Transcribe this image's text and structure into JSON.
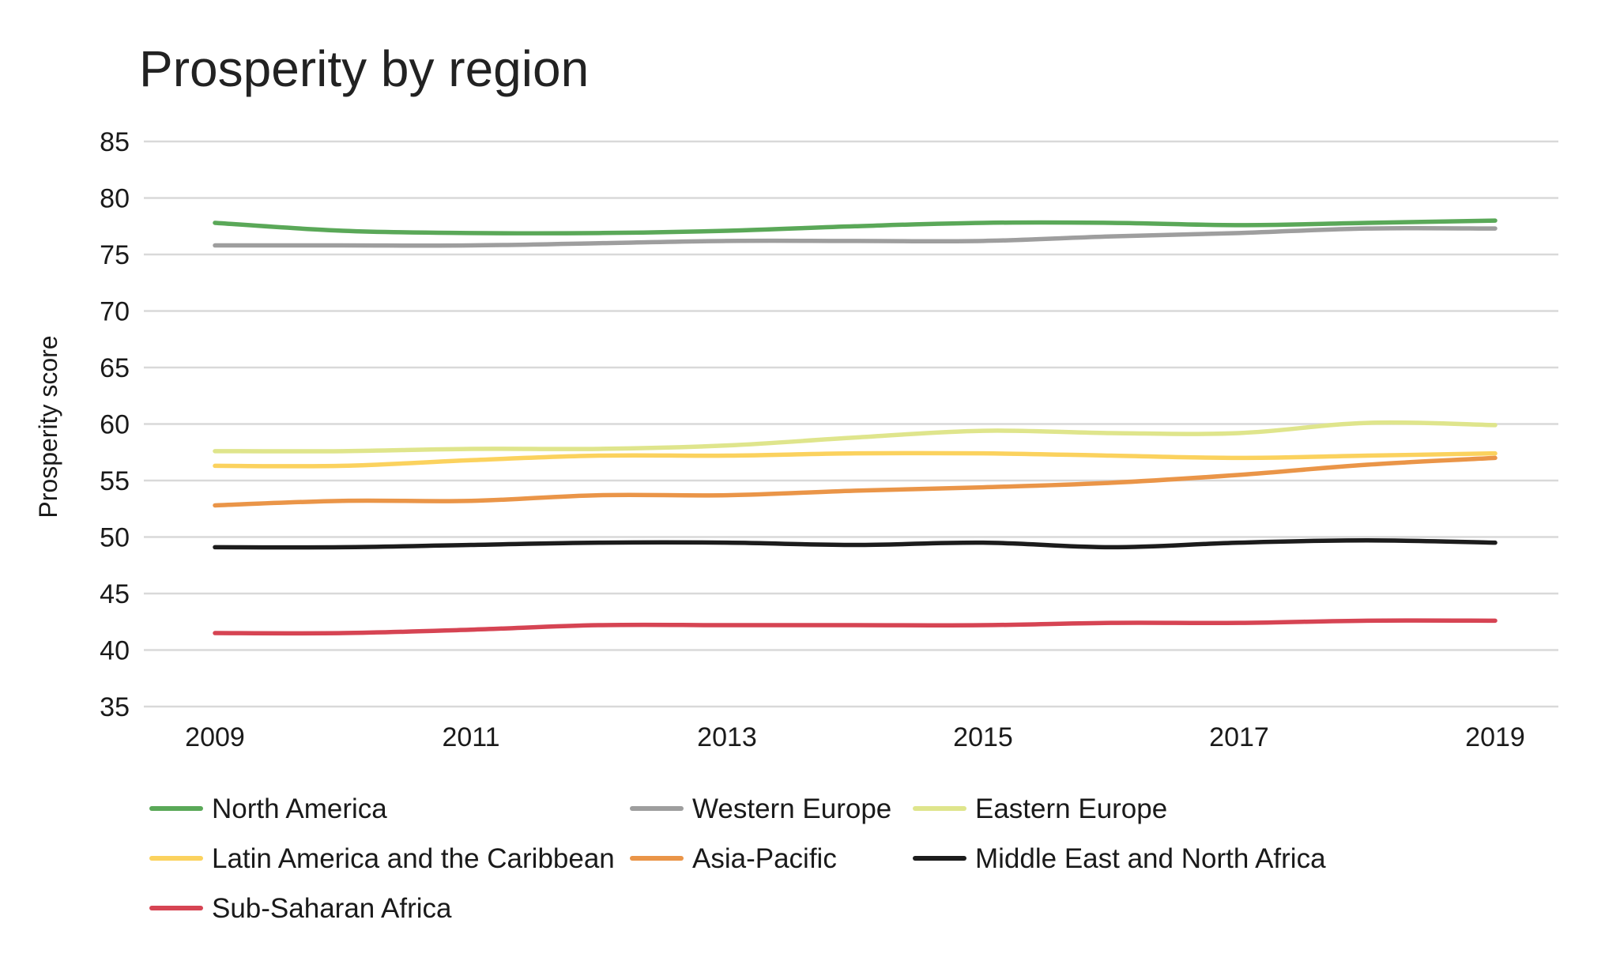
{
  "chart_data": {
    "type": "line",
    "title": "Prosperity by region",
    "xlabel": "",
    "ylabel": "Prosperity score",
    "ylim": [
      35,
      85
    ],
    "yticks": [
      35,
      40,
      45,
      50,
      55,
      60,
      65,
      70,
      75,
      80,
      85
    ],
    "xlim": [
      2009,
      2019
    ],
    "xticks": [
      2009,
      2011,
      2013,
      2015,
      2017,
      2019
    ],
    "x": [
      2009,
      2010,
      2011,
      2012,
      2013,
      2014,
      2015,
      2016,
      2017,
      2018,
      2019
    ],
    "grid": true,
    "legend_position": "bottom",
    "series": [
      {
        "name": "North America",
        "color": "#5aa858",
        "values": [
          77.8,
          77.1,
          76.9,
          76.9,
          77.1,
          77.5,
          77.8,
          77.8,
          77.6,
          77.8,
          78.0
        ]
      },
      {
        "name": "Western Europe",
        "color": "#9e9e9e",
        "values": [
          75.8,
          75.8,
          75.8,
          76.0,
          76.2,
          76.2,
          76.2,
          76.6,
          76.9,
          77.3,
          77.3
        ]
      },
      {
        "name": "Eastern Europe",
        "color": "#dfe58c",
        "values": [
          57.6,
          57.6,
          57.8,
          57.8,
          58.1,
          58.8,
          59.4,
          59.2,
          59.2,
          60.1,
          59.9
        ]
      },
      {
        "name": "Latin America and the Caribbean",
        "color": "#fbd25e",
        "values": [
          56.3,
          56.3,
          56.8,
          57.2,
          57.2,
          57.4,
          57.4,
          57.2,
          57.0,
          57.2,
          57.4
        ]
      },
      {
        "name": "Asia-Pacific",
        "color": "#ea9548",
        "values": [
          52.8,
          53.2,
          53.2,
          53.7,
          53.7,
          54.1,
          54.4,
          54.8,
          55.5,
          56.4,
          57.0
        ]
      },
      {
        "name": "Middle East and North Africa",
        "color": "#1c1c1c",
        "values": [
          49.1,
          49.1,
          49.3,
          49.5,
          49.5,
          49.3,
          49.5,
          49.1,
          49.5,
          49.7,
          49.5
        ]
      },
      {
        "name": "Sub-Saharan Africa",
        "color": "#d64453",
        "values": [
          41.5,
          41.5,
          41.8,
          42.2,
          42.2,
          42.2,
          42.2,
          42.4,
          42.4,
          42.6,
          42.6
        ]
      }
    ]
  }
}
